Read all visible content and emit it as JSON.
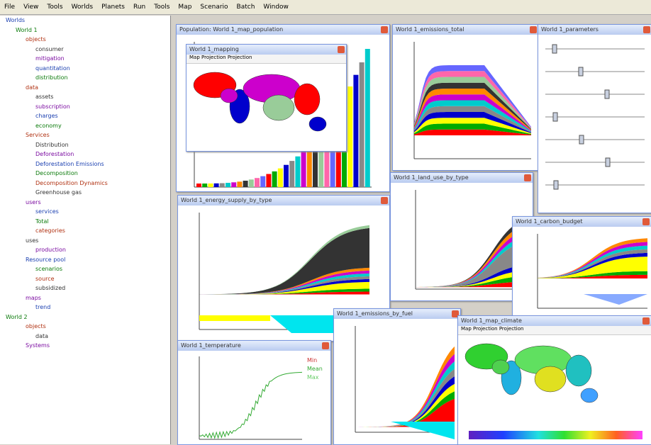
{
  "menu": [
    "File",
    "View",
    "Tools",
    "Worlds",
    "Planets",
    "Run",
    "Tools",
    "Map",
    "Scenario",
    "Batch",
    "Window"
  ],
  "tree": [
    "Worlds",
    "World 1",
    "objects",
    "consumer",
    "mitigation",
    "quantitation",
    "distribution",
    "data",
    "assets",
    "subscription",
    "charges",
    "economy",
    "Services",
    "Distribution",
    "Deforestation",
    "Deforestation Emissions",
    "Decomposition",
    "Decomposition Dynamics",
    "Greenhouse gas",
    "users",
    "services",
    "Total",
    "categories",
    "uses",
    "production",
    "Resource pool",
    "scenarios",
    "source",
    "subsidized",
    "maps",
    "trend",
    "World 2",
    "objects",
    "data",
    "Systems"
  ],
  "windows": {
    "bars": "Population: World 1_map_population",
    "map": "World 1_mapping",
    "map_tool": "Map Projection  Projection",
    "emis": "World 1_emissions_total",
    "params": "World 1_parameters",
    "energy": "World 1_energy_supply_by_type",
    "land": "World 1_land_use_by_type",
    "carbon": "World 1_carbon_budget",
    "temp": "World 1_temperature",
    "fuel": "World 1_emissions_by_fuel",
    "climate": "World 1_map_climate",
    "climate_tool": "Map Projection  Projection"
  },
  "legend": [
    "Min",
    "Mean",
    "Max"
  ]
}
